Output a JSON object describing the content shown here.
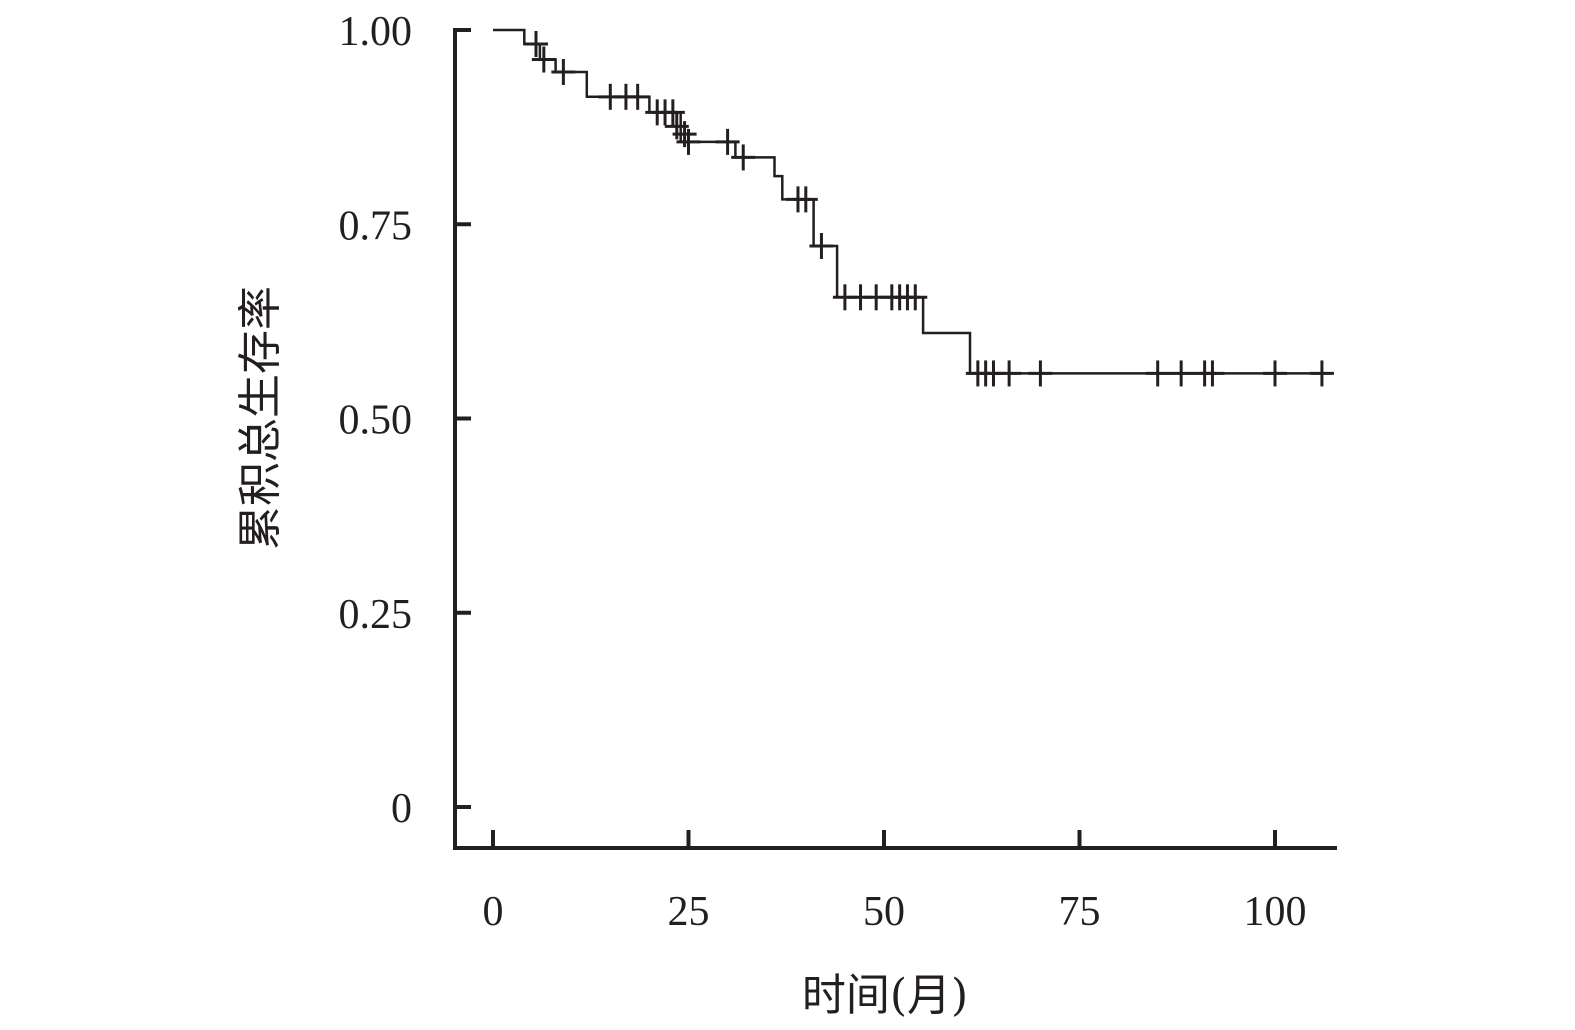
{
  "chart_data": {
    "type": "line",
    "title": "",
    "xlabel": "时间(月)",
    "ylabel": "累积总生存率",
    "xlim": [
      -10,
      108
    ],
    "ylim": [
      -0.05,
      1.0
    ],
    "x_ticks": [
      0,
      25,
      50,
      75,
      100
    ],
    "x_tick_labels": [
      "0",
      "25",
      "50",
      "75",
      "100"
    ],
    "y_ticks": [
      0,
      0.25,
      0.5,
      0.75,
      1.0
    ],
    "y_tick_labels": [
      "0",
      "0.25",
      "0.50",
      "0.75",
      "1.00"
    ],
    "grid": false,
    "legend": "none",
    "colors": {
      "line": "#231f20",
      "axis": "#231f20"
    },
    "series": [
      {
        "step_points": [
          [
            0,
            1.0
          ],
          [
            4,
            1.0
          ],
          [
            4,
            0.982
          ],
          [
            6,
            0.982
          ],
          [
            6,
            0.962
          ],
          [
            8,
            0.962
          ],
          [
            8,
            0.946
          ],
          [
            12,
            0.946
          ],
          [
            12,
            0.914
          ],
          [
            20,
            0.914
          ],
          [
            20,
            0.894
          ],
          [
            24,
            0.894
          ],
          [
            24,
            0.856
          ],
          [
            31,
            0.856
          ],
          [
            31,
            0.836
          ],
          [
            36,
            0.836
          ],
          [
            36,
            0.812
          ],
          [
            37,
            0.812
          ],
          [
            37,
            0.782
          ],
          [
            41,
            0.782
          ],
          [
            41,
            0.722
          ],
          [
            44,
            0.722
          ],
          [
            44,
            0.656
          ],
          [
            55,
            0.656
          ],
          [
            55,
            0.61
          ],
          [
            61,
            0.61
          ],
          [
            61,
            0.558
          ],
          [
            107,
            0.558
          ]
        ],
        "censored": [
          [
            5.5,
            0.982
          ],
          [
            6.5,
            0.962
          ],
          [
            9,
            0.946
          ],
          [
            15,
            0.914
          ],
          [
            17,
            0.914
          ],
          [
            18.5,
            0.914
          ],
          [
            21,
            0.894
          ],
          [
            22,
            0.894
          ],
          [
            23,
            0.894
          ],
          [
            23.5,
            0.876
          ],
          [
            24.5,
            0.866
          ],
          [
            25,
            0.856
          ],
          [
            30,
            0.856
          ],
          [
            32,
            0.836
          ],
          [
            39,
            0.782
          ],
          [
            40,
            0.782
          ],
          [
            42,
            0.722
          ],
          [
            45,
            0.656
          ],
          [
            47,
            0.656
          ],
          [
            49,
            0.656
          ],
          [
            51,
            0.656
          ],
          [
            52,
            0.656
          ],
          [
            53,
            0.656
          ],
          [
            54,
            0.656
          ],
          [
            62,
            0.558
          ],
          [
            63,
            0.558
          ],
          [
            64,
            0.558
          ],
          [
            66,
            0.558
          ],
          [
            70,
            0.558
          ],
          [
            85,
            0.558
          ],
          [
            88,
            0.558
          ],
          [
            91,
            0.558
          ],
          [
            92,
            0.558
          ],
          [
            100,
            0.558
          ],
          [
            106,
            0.558
          ]
        ]
      }
    ]
  }
}
